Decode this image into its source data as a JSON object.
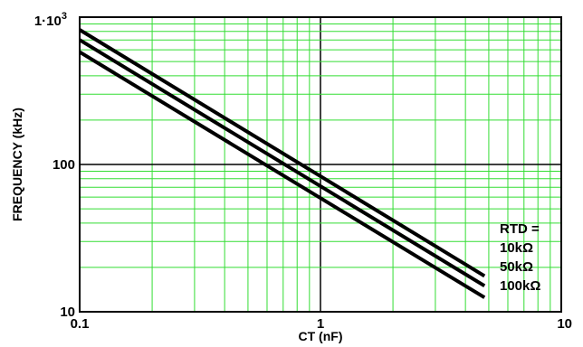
{
  "chart_data": {
    "type": "line",
    "title": "",
    "xlabel": "CT (nF)",
    "ylabel": "FREQUENCY (kHz)",
    "x_scale": "log",
    "y_scale": "log",
    "xlim": [
      0.1,
      10
    ],
    "ylim": [
      10,
      1000
    ],
    "grid": true,
    "x_tick_labels": [
      {
        "value": 0.1,
        "label": "0.1"
      },
      {
        "value": 1,
        "label": "1"
      },
      {
        "value": 10,
        "label": "10"
      }
    ],
    "y_tick_labels": [
      {
        "value": 10,
        "label": "10"
      },
      {
        "value": 100,
        "label": "100"
      },
      {
        "value": 1000,
        "label": "1·10",
        "exp": "3"
      }
    ],
    "legend": {
      "title": "RTD =",
      "placement": "bottom-right",
      "entries": [
        "10kΩ",
        "50kΩ",
        "100kΩ"
      ]
    },
    "series": [
      {
        "name": "10kΩ",
        "x": [
          0.1,
          4.8
        ],
        "y": [
          820,
          17.5
        ]
      },
      {
        "name": "50kΩ",
        "x": [
          0.1,
          4.8
        ],
        "y": [
          700,
          15
        ]
      },
      {
        "name": "100kΩ",
        "x": [
          0.1,
          4.8
        ],
        "y": [
          580,
          12.5
        ]
      }
    ],
    "colors": {
      "grid_minor": "#33dd33",
      "grid_major": "#000000",
      "series": "#000000"
    }
  }
}
